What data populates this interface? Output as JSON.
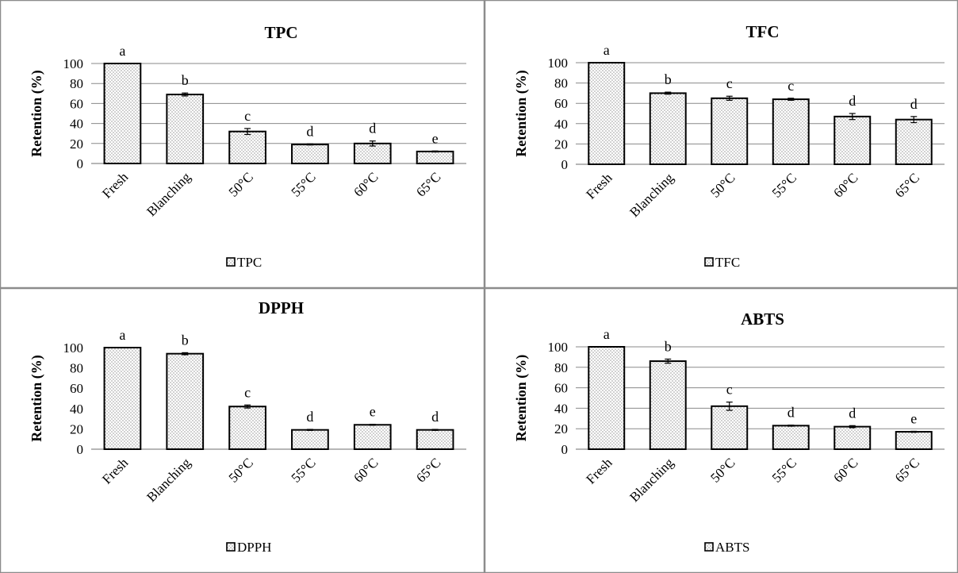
{
  "chart_data": [
    {
      "type": "bar",
      "title": "TPC",
      "ylabel": "Retention (%)",
      "categories": [
        "Fresh",
        "Blanching",
        "50°C",
        "55°C",
        "60°C",
        "65°C"
      ],
      "series": [
        {
          "name": "TPC",
          "values": [
            100,
            69,
            32,
            19,
            20,
            12
          ]
        }
      ],
      "error": [
        0,
        1.5,
        3,
        0.5,
        2.5,
        0.5
      ],
      "labels": [
        "a",
        "b",
        "c",
        "d",
        "d",
        "e"
      ],
      "ylim": [
        0,
        100
      ],
      "yticks": [
        0,
        20,
        40,
        60,
        80,
        100
      ],
      "grid": true,
      "legend": "bottom",
      "pattern": "dotted"
    },
    {
      "type": "bar",
      "title": "TFC",
      "ylabel": "Retention (%)",
      "categories": [
        "Fresh",
        "Blanching",
        "50°C",
        "55°C",
        "60°C",
        "65°C"
      ],
      "series": [
        {
          "name": "TFC",
          "values": [
            100,
            70,
            65,
            64,
            47,
            44
          ]
        }
      ],
      "error": [
        0,
        1,
        2,
        1,
        3,
        3
      ],
      "labels": [
        "a",
        "b",
        "c",
        "c",
        "d",
        "d"
      ],
      "ylim": [
        0,
        100
      ],
      "yticks": [
        0,
        20,
        40,
        60,
        80,
        100
      ],
      "grid": true,
      "legend": "bottom",
      "pattern": "dotted"
    },
    {
      "type": "bar",
      "title": "DPPH",
      "ylabel": "Retention (%)",
      "categories": [
        "Fresh",
        "Blanching",
        "50°C",
        "55°C",
        "60°C",
        "65°C"
      ],
      "series": [
        {
          "name": "DPPH",
          "values": [
            100,
            94,
            42,
            19,
            24,
            19
          ]
        }
      ],
      "error": [
        0,
        1,
        1.5,
        0.5,
        0.5,
        0.5
      ],
      "labels": [
        "a",
        "b",
        "c",
        "d",
        "e",
        "d"
      ],
      "ylim": [
        0,
        100
      ],
      "yticks": [
        0,
        20,
        40,
        60,
        80,
        100
      ],
      "grid": false,
      "legend": "bottom",
      "pattern": "dotted"
    },
    {
      "type": "bar",
      "title": "ABTS",
      "ylabel": "Retention (%)",
      "categories": [
        "Fresh",
        "Blanching",
        "50°C",
        "55°C",
        "60°C",
        "65°C"
      ],
      "series": [
        {
          "name": "ABTS",
          "values": [
            100,
            86,
            42,
            23,
            22,
            17
          ]
        }
      ],
      "error": [
        0,
        2,
        4,
        0.5,
        1,
        0.5
      ],
      "labels": [
        "a",
        "b",
        "c",
        "d",
        "d",
        "e"
      ],
      "ylim": [
        0,
        100
      ],
      "yticks": [
        0,
        20,
        40,
        60,
        80,
        100
      ],
      "grid": true,
      "legend": "bottom",
      "pattern": "dotted"
    }
  ]
}
